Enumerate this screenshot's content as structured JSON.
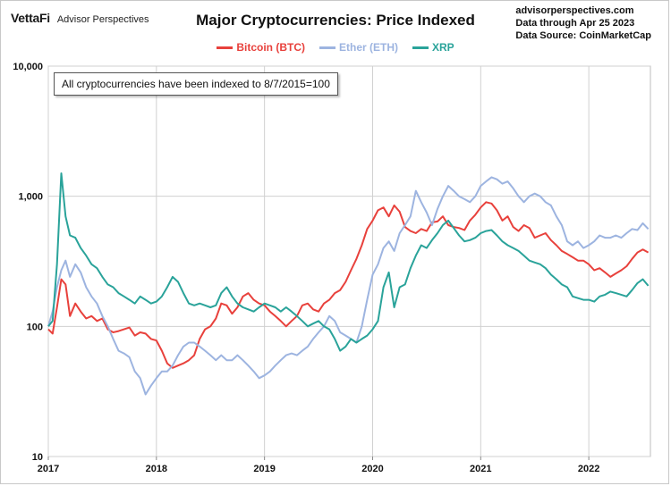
{
  "header": {
    "brand_logo": "VettaFi",
    "brand_name": "Advisor Perspectives",
    "source_lines": [
      "advisorperspectives.com",
      "Data through Apr 25 2023",
      "Data Source: CoinMarketCap"
    ]
  },
  "chart_data": {
    "type": "line",
    "title": "Major Cryptocurrencies: Price Indexed",
    "annotation": "All cryptocurrencies have been indexed to 8/7/2015=100",
    "y_scale": "log",
    "ylim": [
      10,
      10000
    ],
    "y_ticks": [
      10,
      100,
      1000,
      10000
    ],
    "y_tick_labels": [
      "10",
      "100",
      "1,000",
      "10,000"
    ],
    "x_range": [
      "2017",
      "2022.57"
    ],
    "x_ticks": [
      2017,
      2018,
      2019,
      2020,
      2021,
      2022
    ],
    "x_tick_labels": [
      "2017",
      "2018",
      "2019",
      "2020",
      "2021",
      "2022"
    ],
    "grid": true,
    "legend_position": "top-center",
    "series": [
      {
        "name": "Bitcoin (BTC)",
        "color": "#e8413c",
        "x": [
          2017.0,
          2017.04,
          2017.08,
          2017.12,
          2017.16,
          2017.2,
          2017.25,
          2017.3,
          2017.35,
          2017.4,
          2017.45,
          2017.5,
          2017.55,
          2017.6,
          2017.65,
          2017.7,
          2017.75,
          2017.8,
          2017.85,
          2017.9,
          2017.95,
          2018.0,
          2018.05,
          2018.1,
          2018.15,
          2018.2,
          2018.25,
          2018.3,
          2018.35,
          2018.4,
          2018.45,
          2018.5,
          2018.55,
          2018.6,
          2018.65,
          2018.7,
          2018.75,
          2018.8,
          2018.85,
          2018.9,
          2018.95,
          2019.0,
          2019.05,
          2019.1,
          2019.15,
          2019.2,
          2019.25,
          2019.3,
          2019.35,
          2019.4,
          2019.45,
          2019.5,
          2019.55,
          2019.6,
          2019.65,
          2019.7,
          2019.75,
          2019.8,
          2019.85,
          2019.9,
          2019.95,
          2020.0,
          2020.05,
          2020.1,
          2020.15,
          2020.2,
          2020.25,
          2020.3,
          2020.35,
          2020.4,
          2020.45,
          2020.5,
          2020.55,
          2020.6,
          2020.65,
          2020.7,
          2020.75,
          2020.8,
          2020.85,
          2020.9,
          2020.95,
          2021.0,
          2021.05,
          2021.1,
          2021.15,
          2021.2,
          2021.25,
          2021.3,
          2021.35,
          2021.4,
          2021.45,
          2021.5,
          2021.55,
          2021.6,
          2021.65,
          2021.7,
          2021.75,
          2021.8,
          2021.85,
          2021.9,
          2021.95,
          2022.0,
          2022.05,
          2022.1,
          2022.15,
          2022.2,
          2022.25,
          2022.3,
          2022.35,
          2022.4,
          2022.45,
          2022.5,
          2022.55
        ],
        "y": [
          95,
          88,
          140,
          230,
          210,
          120,
          150,
          130,
          115,
          120,
          110,
          115,
          95,
          90,
          92,
          95,
          98,
          85,
          90,
          88,
          80,
          78,
          65,
          52,
          48,
          50,
          52,
          55,
          60,
          80,
          95,
          100,
          115,
          150,
          145,
          125,
          140,
          170,
          180,
          160,
          150,
          145,
          130,
          120,
          110,
          100,
          110,
          120,
          145,
          150,
          135,
          130,
          150,
          160,
          180,
          190,
          220,
          270,
          330,
          420,
          560,
          650,
          780,
          820,
          700,
          850,
          760,
          580,
          540,
          520,
          560,
          540,
          630,
          640,
          700,
          600,
          580,
          570,
          550,
          650,
          720,
          820,
          900,
          880,
          780,
          650,
          700,
          580,
          540,
          600,
          570,
          480,
          500,
          520,
          460,
          420,
          380,
          360,
          340,
          320,
          320,
          300,
          270,
          280,
          260,
          240,
          255,
          270,
          290,
          330,
          370,
          390,
          370
        ]
      },
      {
        "name": "Ether (ETH)",
        "color": "#9db4e0",
        "x": [
          2017.0,
          2017.04,
          2017.08,
          2017.12,
          2017.16,
          2017.2,
          2017.25,
          2017.3,
          2017.35,
          2017.4,
          2017.45,
          2017.5,
          2017.55,
          2017.6,
          2017.65,
          2017.7,
          2017.75,
          2017.8,
          2017.85,
          2017.9,
          2017.95,
          2018.0,
          2018.05,
          2018.1,
          2018.15,
          2018.2,
          2018.25,
          2018.3,
          2018.35,
          2018.4,
          2018.45,
          2018.5,
          2018.55,
          2018.6,
          2018.65,
          2018.7,
          2018.75,
          2018.8,
          2018.85,
          2018.9,
          2018.95,
          2019.0,
          2019.05,
          2019.1,
          2019.15,
          2019.2,
          2019.25,
          2019.3,
          2019.35,
          2019.4,
          2019.45,
          2019.5,
          2019.55,
          2019.6,
          2019.65,
          2019.7,
          2019.75,
          2019.8,
          2019.85,
          2019.9,
          2019.95,
          2020.0,
          2020.05,
          2020.1,
          2020.15,
          2020.2,
          2020.25,
          2020.3,
          2020.35,
          2020.4,
          2020.45,
          2020.5,
          2020.55,
          2020.6,
          2020.65,
          2020.7,
          2020.75,
          2020.8,
          2020.85,
          2020.9,
          2020.95,
          2021.0,
          2021.05,
          2021.1,
          2021.15,
          2021.2,
          2021.25,
          2021.3,
          2021.35,
          2021.4,
          2021.45,
          2021.5,
          2021.55,
          2021.6,
          2021.65,
          2021.7,
          2021.75,
          2021.8,
          2021.85,
          2021.9,
          2021.95,
          2022.0,
          2022.05,
          2022.1,
          2022.15,
          2022.2,
          2022.25,
          2022.3,
          2022.35,
          2022.4,
          2022.45,
          2022.5,
          2022.55
        ],
        "y": [
          100,
          130,
          200,
          270,
          320,
          240,
          300,
          260,
          200,
          170,
          150,
          120,
          100,
          80,
          65,
          62,
          58,
          45,
          40,
          30,
          35,
          40,
          45,
          45,
          50,
          60,
          70,
          75,
          75,
          70,
          65,
          60,
          55,
          60,
          55,
          55,
          60,
          55,
          50,
          45,
          40,
          42,
          45,
          50,
          55,
          60,
          62,
          60,
          65,
          70,
          80,
          90,
          100,
          120,
          110,
          90,
          85,
          80,
          75,
          100,
          160,
          250,
          300,
          400,
          450,
          380,
          520,
          600,
          700,
          1100,
          900,
          750,
          600,
          800,
          1000,
          1200,
          1100,
          1000,
          950,
          900,
          1000,
          1200,
          1300,
          1400,
          1350,
          1250,
          1300,
          1150,
          1000,
          900,
          1000,
          1050,
          1000,
          900,
          850,
          700,
          600,
          450,
          420,
          450,
          400,
          420,
          450,
          500,
          480,
          480,
          500,
          480,
          520,
          560,
          550,
          620,
          560
        ]
      },
      {
        "name": "XRP",
        "color": "#2aa39a",
        "x": [
          2017.0,
          2017.04,
          2017.08,
          2017.12,
          2017.16,
          2017.2,
          2017.25,
          2017.3,
          2017.35,
          2017.4,
          2017.45,
          2017.5,
          2017.55,
          2017.6,
          2017.65,
          2017.7,
          2017.75,
          2017.8,
          2017.85,
          2017.9,
          2017.95,
          2018.0,
          2018.05,
          2018.1,
          2018.15,
          2018.2,
          2018.25,
          2018.3,
          2018.35,
          2018.4,
          2018.45,
          2018.5,
          2018.55,
          2018.6,
          2018.65,
          2018.7,
          2018.75,
          2018.8,
          2018.85,
          2018.9,
          2018.95,
          2019.0,
          2019.05,
          2019.1,
          2019.15,
          2019.2,
          2019.25,
          2019.3,
          2019.35,
          2019.4,
          2019.45,
          2019.5,
          2019.55,
          2019.6,
          2019.65,
          2019.7,
          2019.75,
          2019.8,
          2019.85,
          2019.9,
          2019.95,
          2020.0,
          2020.05,
          2020.1,
          2020.15,
          2020.2,
          2020.25,
          2020.3,
          2020.35,
          2020.4,
          2020.45,
          2020.5,
          2020.55,
          2020.6,
          2020.65,
          2020.7,
          2020.75,
          2020.8,
          2020.85,
          2020.9,
          2020.95,
          2021.0,
          2021.05,
          2021.1,
          2021.15,
          2021.2,
          2021.25,
          2021.3,
          2021.35,
          2021.4,
          2021.45,
          2021.5,
          2021.55,
          2021.6,
          2021.65,
          2021.7,
          2021.75,
          2021.8,
          2021.85,
          2021.9,
          2021.95,
          2022.0,
          2022.05,
          2022.1,
          2022.15,
          2022.2,
          2022.25,
          2022.3,
          2022.35,
          2022.4,
          2022.45,
          2022.5,
          2022.55
        ],
        "y": [
          100,
          110,
          300,
          1500,
          700,
          500,
          480,
          400,
          350,
          300,
          280,
          240,
          210,
          200,
          180,
          170,
          160,
          150,
          170,
          160,
          150,
          155,
          170,
          200,
          240,
          220,
          180,
          150,
          145,
          150,
          145,
          140,
          145,
          180,
          200,
          170,
          150,
          140,
          135,
          130,
          140,
          150,
          145,
          140,
          130,
          140,
          130,
          120,
          110,
          100,
          105,
          110,
          100,
          95,
          80,
          65,
          70,
          80,
          75,
          80,
          85,
          95,
          110,
          200,
          260,
          140,
          200,
          210,
          280,
          350,
          420,
          400,
          460,
          520,
          600,
          650,
          570,
          500,
          450,
          460,
          480,
          520,
          540,
          550,
          500,
          450,
          420,
          400,
          380,
          350,
          320,
          310,
          300,
          280,
          250,
          230,
          210,
          200,
          170,
          165,
          160,
          160,
          155,
          170,
          175,
          185,
          180,
          175,
          170,
          190,
          215,
          230,
          205
        ]
      }
    ]
  }
}
